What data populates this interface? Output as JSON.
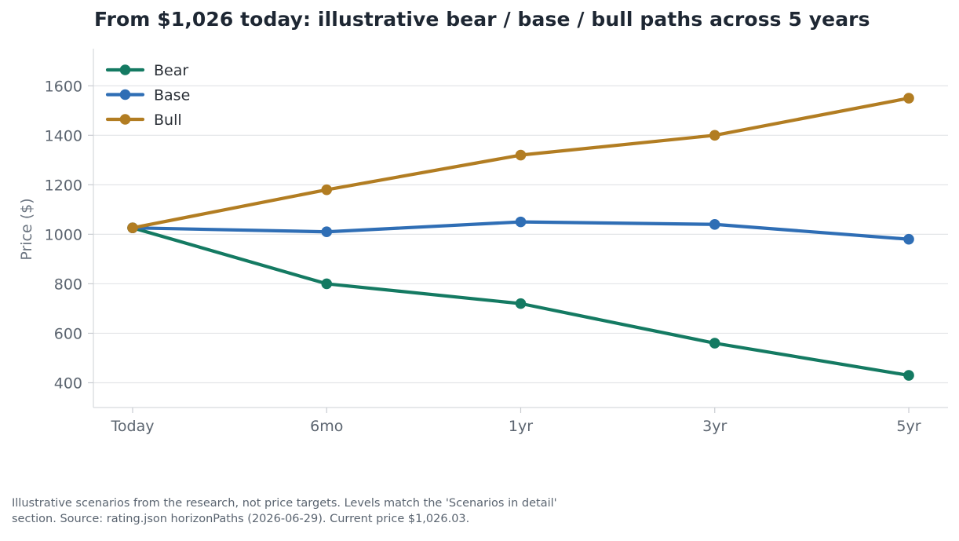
{
  "chart_data": {
    "type": "line",
    "title": "From $1,026 today: illustrative bear / base / bull paths across 5 years",
    "xlabel": "",
    "ylabel": "Price ($)",
    "categories": [
      "Today",
      "6mo",
      "1yr",
      "3yr",
      "5yr"
    ],
    "yticks": [
      400,
      600,
      800,
      1000,
      1200,
      1400,
      1600
    ],
    "ylim": [
      300,
      1750
    ],
    "grid": "horizontal",
    "legend_position": "top-left",
    "series": [
      {
        "name": "Bear",
        "color": "#147a62",
        "values": [
          1026,
          800,
          720,
          560,
          430
        ]
      },
      {
        "name": "Base",
        "color": "#2f6eb5",
        "values": [
          1026,
          1010,
          1050,
          1040,
          980
        ]
      },
      {
        "name": "Bull",
        "color": "#b27d22",
        "values": [
          1026,
          1180,
          1320,
          1400,
          1550
        ]
      }
    ]
  },
  "footnote": {
    "line1": "Illustrative scenarios from the research, not price targets. Levels match the 'Scenarios in detail'",
    "line2": "section. Source: rating.json horizonPaths (2026-06-29). Current price $1,026.03."
  }
}
